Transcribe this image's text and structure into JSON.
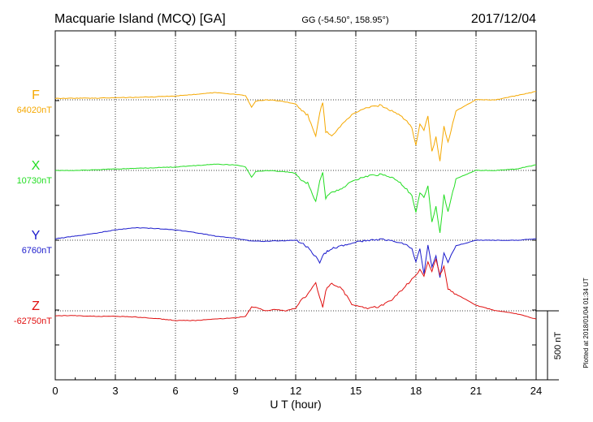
{
  "header": {
    "station": "Macquarie Island (MCQ)  [GA]",
    "coords": "GG (-54.50°, 158.95°)",
    "date": "2017/12/04"
  },
  "plotted_note": "Plotted at 2018/01/04 01:34 UT",
  "scale_label": "500 nT",
  "chart_data": {
    "type": "line",
    "xlabel": "U T (hour)",
    "ylabel": "",
    "xlim": [
      0,
      24
    ],
    "xticks": [
      0,
      3,
      6,
      9,
      12,
      15,
      18,
      21,
      24
    ],
    "grid": true,
    "legend": "left",
    "scale_bar_nT": 500,
    "series": [
      {
        "name": "F",
        "baseline_label": "64020nT",
        "baseline_nT": 64020,
        "color": "#f5a800",
        "x": [
          0,
          1,
          2,
          3,
          4,
          5,
          6,
          7,
          8,
          9,
          9.5,
          9.8,
          10,
          10.5,
          11,
          11.5,
          12,
          12.3,
          12.6,
          13.0,
          13.2,
          13.35,
          13.5,
          13.8,
          14.3,
          14.8,
          15.5,
          16.2,
          16.8,
          17.3,
          17.8,
          18.0,
          18.2,
          18.4,
          18.6,
          18.8,
          19.0,
          19.2,
          19.4,
          19.6,
          20,
          21,
          22,
          23,
          24
        ],
        "values": [
          10,
          12,
          12,
          15,
          18,
          22,
          28,
          40,
          52,
          40,
          30,
          -55,
          -10,
          0,
          -5,
          -15,
          -30,
          -80,
          -110,
          -270,
          -90,
          -20,
          -230,
          -260,
          -180,
          -110,
          -60,
          -40,
          -80,
          -120,
          -200,
          -330,
          -170,
          -220,
          -120,
          -380,
          -270,
          -440,
          -190,
          -310,
          -80,
          0,
          0,
          30,
          60
        ]
      },
      {
        "name": "X",
        "baseline_label": "10730nT",
        "baseline_nT": 10730,
        "color": "#22dd22",
        "x": [
          0,
          1,
          2,
          3,
          4,
          5,
          6,
          7,
          8,
          9,
          9.5,
          9.8,
          10,
          10.5,
          11,
          11.5,
          12,
          12.3,
          12.6,
          13.0,
          13.2,
          13.35,
          13.5,
          13.8,
          14.3,
          14.8,
          15.5,
          16.2,
          16.8,
          17.3,
          17.8,
          18.0,
          18.2,
          18.4,
          18.6,
          18.8,
          19.0,
          19.2,
          19.4,
          19.6,
          20,
          21,
          22,
          23,
          24
        ],
        "values": [
          0,
          0,
          5,
          10,
          15,
          20,
          25,
          35,
          45,
          40,
          25,
          -50,
          -10,
          0,
          -5,
          -10,
          -20,
          -80,
          -90,
          -230,
          -70,
          -20,
          -200,
          -160,
          -130,
          -80,
          -40,
          -30,
          -50,
          -100,
          -180,
          -300,
          -160,
          -200,
          -110,
          -380,
          -260,
          -450,
          -180,
          -300,
          -60,
          0,
          0,
          10,
          40
        ]
      },
      {
        "name": "Y",
        "baseline_label": "6760nT",
        "baseline_nT": 6760,
        "color": "#1a1acc",
        "x": [
          0,
          1,
          2,
          3,
          4,
          5,
          6,
          7,
          8,
          9,
          9.5,
          9.8,
          10,
          10.5,
          11,
          11.5,
          12,
          12.3,
          12.6,
          13.0,
          13.2,
          13.35,
          13.5,
          13.8,
          14.3,
          14.8,
          15.5,
          16.2,
          16.8,
          17.3,
          17.8,
          18.0,
          18.2,
          18.4,
          18.6,
          18.8,
          19.0,
          19.2,
          19.4,
          19.6,
          20,
          21,
          22,
          23,
          24
        ],
        "values": [
          10,
          30,
          50,
          75,
          90,
          85,
          75,
          55,
          30,
          15,
          0,
          -5,
          -5,
          -8,
          -5,
          -3,
          0,
          -20,
          -50,
          -120,
          -160,
          -110,
          -90,
          -60,
          -40,
          -20,
          0,
          5,
          0,
          -20,
          -60,
          -160,
          -60,
          -240,
          -30,
          -200,
          -110,
          -270,
          -90,
          -160,
          -40,
          0,
          0,
          0,
          10
        ]
      },
      {
        "name": "Z",
        "baseline_label": "-62750nT",
        "baseline_nT": -62750,
        "color": "#e01010",
        "x": [
          0,
          1,
          2,
          3,
          4,
          5,
          6,
          7,
          8,
          9,
          9.5,
          9.8,
          10,
          10.5,
          11,
          11.5,
          12,
          12.3,
          12.6,
          13.0,
          13.2,
          13.35,
          13.5,
          13.8,
          14.3,
          14.8,
          15.5,
          16.2,
          16.8,
          17.3,
          17.8,
          18.0,
          18.2,
          18.4,
          18.6,
          18.8,
          19.0,
          19.2,
          19.4,
          19.6,
          20,
          21,
          22,
          23,
          24
        ],
        "values": [
          -35,
          -35,
          -40,
          -40,
          -45,
          -55,
          -70,
          -70,
          -60,
          -50,
          -40,
          30,
          25,
          0,
          10,
          0,
          20,
          80,
          120,
          200,
          100,
          20,
          150,
          200,
          160,
          50,
          20,
          30,
          80,
          150,
          230,
          260,
          300,
          250,
          350,
          280,
          380,
          260,
          320,
          160,
          120,
          40,
          0,
          -20,
          -60
        ]
      }
    ]
  }
}
